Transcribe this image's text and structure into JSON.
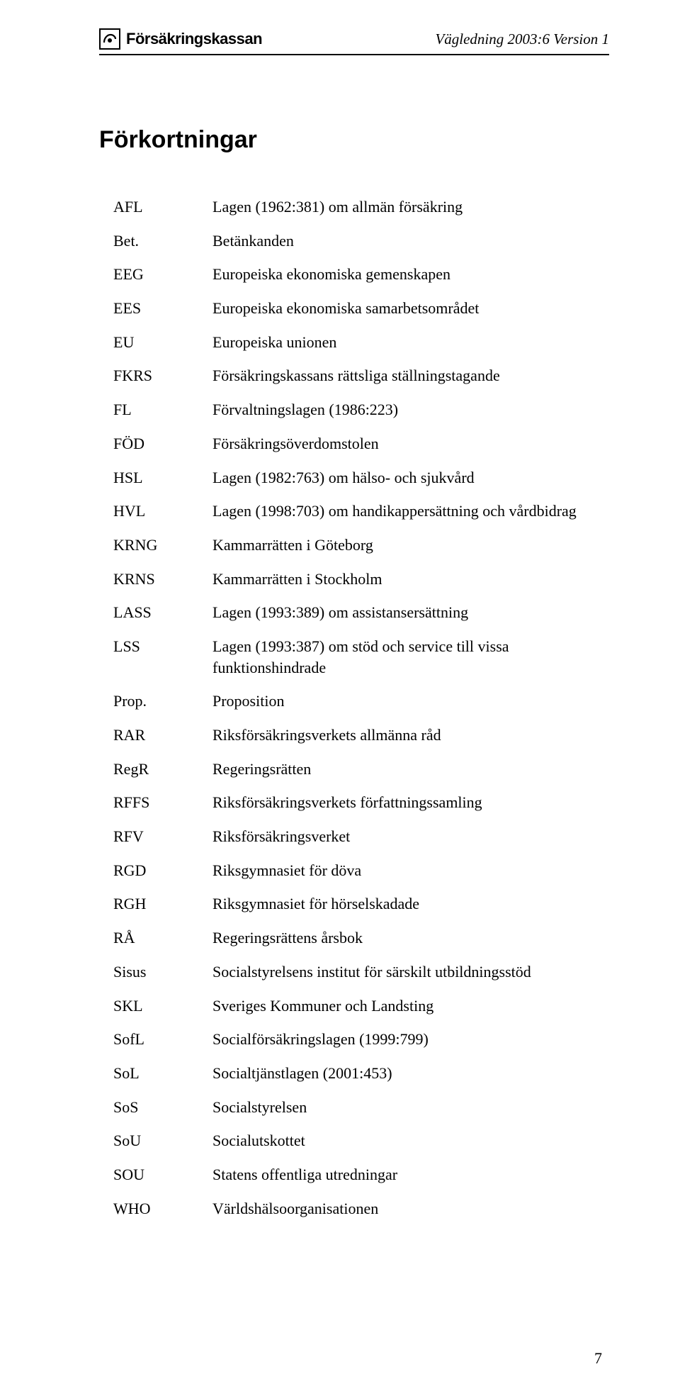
{
  "header": {
    "logo_text": "Försäkringskassan",
    "doc_ref": "Vägledning 2003:6 Version 1"
  },
  "title": "Förkortningar",
  "entries": [
    {
      "abbr": "AFL",
      "full": "Lagen (1962:381) om allmän försäkring"
    },
    {
      "abbr": "Bet.",
      "full": "Betänkanden"
    },
    {
      "abbr": "EEG",
      "full": "Europeiska ekonomiska gemenskapen"
    },
    {
      "abbr": "EES",
      "full": "Europeiska ekonomiska samarbetsområdet"
    },
    {
      "abbr": "EU",
      "full": "Europeiska unionen"
    },
    {
      "abbr": "FKRS",
      "full": "Försäkringskassans rättsliga ställningstagande"
    },
    {
      "abbr": "FL",
      "full": "Förvaltningslagen (1986:223)"
    },
    {
      "abbr": "FÖD",
      "full": "Försäkringsöverdomstolen"
    },
    {
      "abbr": "HSL",
      "full": "Lagen (1982:763) om hälso- och sjukvård"
    },
    {
      "abbr": "HVL",
      "full": "Lagen (1998:703) om handikappersättning och vårdbidrag"
    },
    {
      "abbr": "KRNG",
      "full": "Kammarrätten i Göteborg"
    },
    {
      "abbr": "KRNS",
      "full": "Kammarrätten i Stockholm"
    },
    {
      "abbr": "LASS",
      "full": "Lagen (1993:389) om assistansersättning"
    },
    {
      "abbr": "LSS",
      "full": "Lagen (1993:387) om stöd och service till vissa funktionshindrade"
    },
    {
      "abbr": "Prop.",
      "full": "Proposition"
    },
    {
      "abbr": "RAR",
      "full": "Riksförsäkringsverkets allmänna råd"
    },
    {
      "abbr": "RegR",
      "full": "Regeringsrätten"
    },
    {
      "abbr": "RFFS",
      "full": "Riksförsäkringsverkets författningssamling"
    },
    {
      "abbr": "RFV",
      "full": "Riksförsäkringsverket"
    },
    {
      "abbr": "RGD",
      "full": "Riksgymnasiet för döva"
    },
    {
      "abbr": "RGH",
      "full": "Riksgymnasiet för hörselskadade"
    },
    {
      "abbr": "RÅ",
      "full": "Regeringsrättens årsbok"
    },
    {
      "abbr": "Sisus",
      "full": "Socialstyrelsens institut för särskilt utbildningsstöd"
    },
    {
      "abbr": "SKL",
      "full": "Sveriges Kommuner och Landsting"
    },
    {
      "abbr": "SofL",
      "full": "Socialförsäkringslagen (1999:799)"
    },
    {
      "abbr": "SoL",
      "full": "Socialtjänstlagen (2001:453)"
    },
    {
      "abbr": "SoS",
      "full": "Socialstyrelsen"
    },
    {
      "abbr": "SoU",
      "full": "Socialutskottet"
    },
    {
      "abbr": "SOU",
      "full": "Statens offentliga utredningar"
    },
    {
      "abbr": "WHO",
      "full": "Världshälsoorganisationen"
    }
  ],
  "page_number": "7"
}
